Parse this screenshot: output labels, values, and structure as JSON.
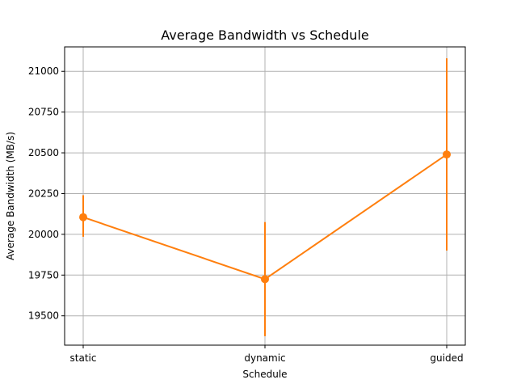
{
  "chart_data": {
    "type": "line",
    "title": "Average Bandwidth vs Schedule",
    "xlabel": "Schedule",
    "ylabel": "Average Bandwidth (MB/s)",
    "categories": [
      "static",
      "dynamic",
      "guided"
    ],
    "series": [
      {
        "values": [
          20105,
          19725,
          20490
        ],
        "error_low": [
          19985,
          19375,
          19900
        ],
        "error_high": [
          20240,
          20075,
          21080
        ],
        "color": "#ff7f0e"
      }
    ],
    "ylim": [
      19320,
      21150
    ],
    "yticks": [
      19500,
      19750,
      20000,
      20250,
      20500,
      20750,
      21000
    ],
    "grid": true,
    "legend": "none"
  }
}
